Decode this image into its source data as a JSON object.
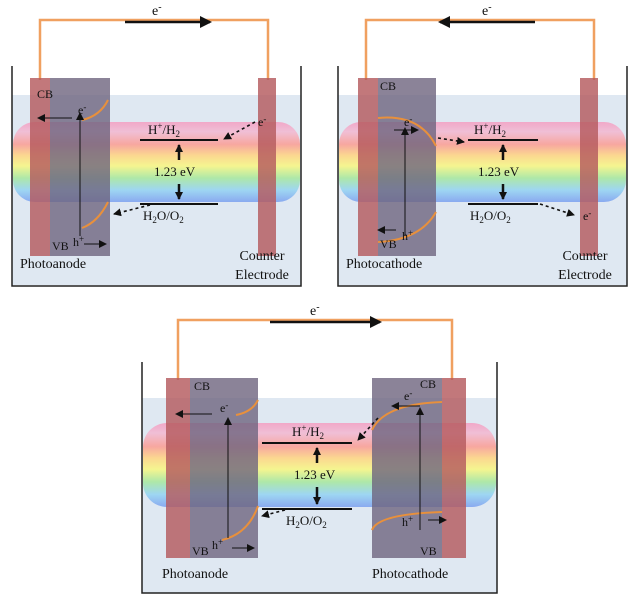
{
  "electron": "e",
  "electron_sup": "-",
  "hole": "h",
  "hole_sup": "+",
  "cb": "CB",
  "vb": "VB",
  "redox_top_prefix": "H",
  "redox_top_sup": "+",
  "redox_top_mid": "/H",
  "redox_top_sub": "2",
  "energy": "1.23 eV",
  "redox_bot_a": "H",
  "redox_bot_sub1": "2",
  "redox_bot_b": "O/O",
  "redox_bot_sub2": "2",
  "photoanode": "Photoanode",
  "photocathode": "Photocathode",
  "counter_line1": "Counter",
  "counter_line2": "Electrode",
  "colors": {
    "wire": "#f0a060",
    "electrode": "#b55a5e",
    "semiconductor": "#6e647e",
    "water": "#dfe8f2",
    "band_edge": "#e8903c"
  }
}
